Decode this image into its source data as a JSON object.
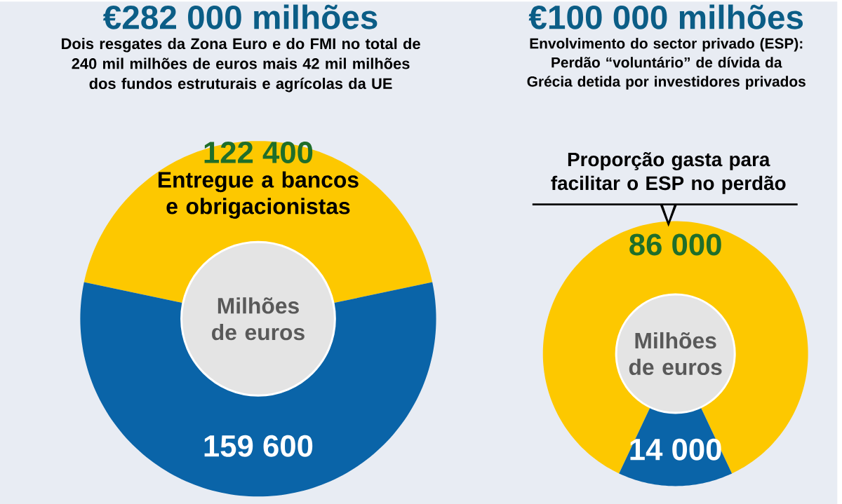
{
  "chart_data": [
    {
      "type": "donut",
      "title": "€282 000 milhões",
      "subtitle": "Dois resgates da Zona Euro e do FMI no total de 240 mil milhões de euros mais 42 mil milhões dos fundos estruturais e agrícolas da UE",
      "categories": [
        "Entregue a bancos e obrigacionistas",
        null
      ],
      "values": [
        122400,
        159600
      ],
      "value_labels": [
        "122 400",
        "159 600"
      ],
      "colors": [
        "#fdc800",
        "#0a64a8"
      ],
      "annotations": [
        "Milhões de euros"
      ]
    },
    {
      "type": "donut",
      "title": "€100 000 milhões",
      "subtitle": "Envolvimento do sector privado (ESP): Perdão “voluntário” de dívida da Grécia detida por investidores privados",
      "categories": [
        "Proporção gasta para facilitar o ESP no perdão",
        null
      ],
      "values": [
        86000,
        14000
      ],
      "value_labels": [
        "86 000",
        "14 000"
      ],
      "colors": [
        "#fdc800",
        "#0a64a8"
      ],
      "annotations": [
        "Milhões de euros"
      ]
    }
  ]
}
